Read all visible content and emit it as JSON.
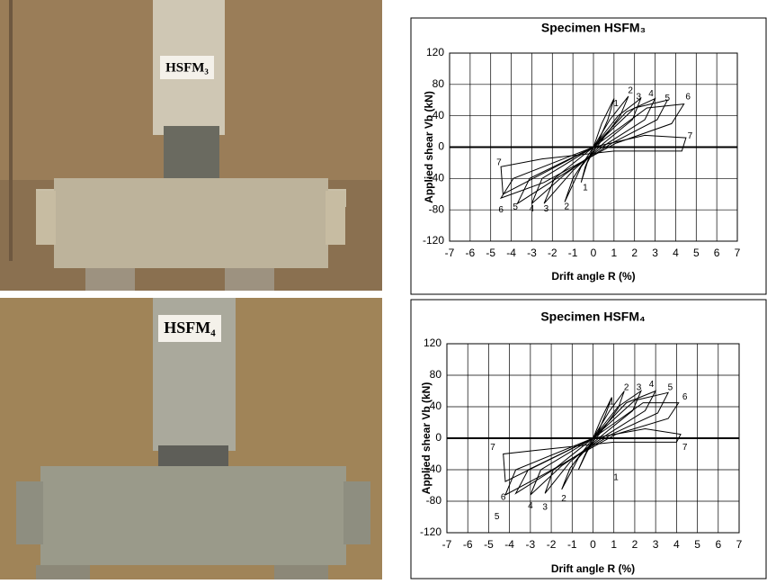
{
  "photos": [
    {
      "label": "HSFM₃"
    },
    {
      "label": "HSFM₄"
    }
  ],
  "chart_data": [
    {
      "type": "line",
      "title": "Specimen HSFM₃",
      "x_label": "Drift angle R (%)",
      "y_label": "Applied shear Vb (kN)",
      "xlim": [
        -7,
        7
      ],
      "xticks": [
        -7,
        -6,
        -5,
        -4,
        -3,
        -2,
        -1,
        0,
        1,
        2,
        3,
        4,
        5,
        6,
        7
      ],
      "ylim": [
        -120,
        120
      ],
      "yticks": [
        -120,
        -80,
        -40,
        0,
        40,
        80,
        120
      ],
      "grid": true,
      "color": "#000000",
      "series": [
        {
          "x": [
            0,
            0.4,
            1.0,
            0.7,
            0.2,
            -0.3,
            -0.6,
            -0.4,
            0
          ],
          "values": [
            0,
            30,
            62,
            35,
            5,
            -20,
            -45,
            -25,
            0
          ]
        },
        {
          "x": [
            0,
            0.8,
            1.7,
            1.3,
            0.3,
            -0.6,
            -1.4,
            -1.0,
            0
          ],
          "values": [
            0,
            35,
            65,
            40,
            5,
            -25,
            -70,
            -40,
            0
          ]
        },
        {
          "x": [
            0,
            1.2,
            2.3,
            1.9,
            0.5,
            -1.0,
            -2.4,
            -1.9,
            0
          ],
          "values": [
            0,
            40,
            62,
            35,
            5,
            -30,
            -72,
            -40,
            0
          ]
        },
        {
          "x": [
            0,
            1.6,
            3.0,
            2.5,
            0.7,
            -1.4,
            -3.0,
            -2.5,
            0
          ],
          "values": [
            0,
            45,
            62,
            35,
            5,
            -35,
            -72,
            -40,
            0
          ]
        },
        {
          "x": [
            0,
            2.0,
            3.6,
            3.1,
            0.9,
            -1.8,
            -3.7,
            -3.1,
            0
          ],
          "values": [
            0,
            50,
            60,
            35,
            5,
            -40,
            -72,
            -40,
            0
          ]
        },
        {
          "x": [
            0,
            2.6,
            4.4,
            3.8,
            1.1,
            -2.4,
            -4.5,
            -3.9,
            0
          ],
          "values": [
            0,
            50,
            55,
            30,
            5,
            -45,
            -65,
            -40,
            0
          ]
        },
        {
          "x": [
            0,
            2.5,
            4.5,
            4.3,
            1.0,
            -2.5,
            -4.5,
            -4.4,
            0
          ],
          "values": [
            0,
            15,
            12,
            -5,
            -5,
            -15,
            -25,
            -60,
            0
          ]
        }
      ],
      "annotations": [
        {
          "text": "1",
          "x": 1.1,
          "y": 55
        },
        {
          "text": "2",
          "x": 1.8,
          "y": 72
        },
        {
          "text": "3",
          "x": 2.2,
          "y": 64
        },
        {
          "text": "4",
          "x": 2.8,
          "y": 68
        },
        {
          "text": "5",
          "x": 3.6,
          "y": 62
        },
        {
          "text": "6",
          "x": 4.6,
          "y": 64
        },
        {
          "text": "7",
          "x": 4.7,
          "y": 14
        },
        {
          "text": "1",
          "x": -0.4,
          "y": -52
        },
        {
          "text": "2",
          "x": -1.3,
          "y": -76
        },
        {
          "text": "3",
          "x": -2.3,
          "y": -79
        },
        {
          "text": "4",
          "x": -3.0,
          "y": -79
        },
        {
          "text": "5",
          "x": -3.8,
          "y": -77
        },
        {
          "text": "6",
          "x": -4.5,
          "y": -80
        },
        {
          "text": "7",
          "x": -4.6,
          "y": -20
        }
      ]
    },
    {
      "type": "line",
      "title": "Specimen HSFM₄",
      "x_label": "Drift angle R (%)",
      "y_label": "Applied shear Vb  (kN)",
      "xlim": [
        -7,
        7
      ],
      "xticks": [
        -7,
        -6,
        -5,
        -4,
        -3,
        -2,
        -1,
        0,
        1,
        2,
        3,
        4,
        5,
        6,
        7
      ],
      "ylim": [
        -120,
        120
      ],
      "yticks": [
        -120,
        -80,
        -40,
        0,
        40,
        80,
        120
      ],
      "grid": true,
      "color": "#000000",
      "series": [
        {
          "x": [
            0,
            0.4,
            0.9,
            0.6,
            0.2,
            -0.3,
            -0.7,
            -0.4,
            0
          ],
          "values": [
            0,
            25,
            52,
            30,
            5,
            -18,
            -40,
            -22,
            0
          ]
        },
        {
          "x": [
            0,
            0.8,
            1.5,
            1.2,
            0.3,
            -0.7,
            -1.5,
            -1.1,
            0
          ],
          "values": [
            0,
            35,
            60,
            38,
            5,
            -25,
            -65,
            -38,
            0
          ]
        },
        {
          "x": [
            0,
            1.2,
            2.3,
            1.9,
            0.5,
            -1.1,
            -2.3,
            -1.9,
            0
          ],
          "values": [
            0,
            40,
            60,
            35,
            5,
            -30,
            -70,
            -40,
            0
          ]
        },
        {
          "x": [
            0,
            1.6,
            3.0,
            2.5,
            0.7,
            -1.5,
            -3.0,
            -2.5,
            0
          ],
          "values": [
            0,
            45,
            60,
            35,
            5,
            -35,
            -72,
            -40,
            0
          ]
        },
        {
          "x": [
            0,
            2.0,
            3.6,
            3.1,
            0.9,
            -1.9,
            -3.7,
            -3.1,
            0
          ],
          "values": [
            0,
            48,
            58,
            32,
            5,
            -40,
            -70,
            -40,
            0
          ]
        },
        {
          "x": [
            0,
            2.4,
            4.1,
            3.6,
            1.1,
            -2.3,
            -4.2,
            -3.7,
            0
          ],
          "values": [
            0,
            45,
            45,
            25,
            5,
            -45,
            -72,
            -40,
            0
          ]
        },
        {
          "x": [
            0,
            2.5,
            4.2,
            4.0,
            1.0,
            -2.6,
            -4.3,
            -4.2,
            0
          ],
          "values": [
            0,
            12,
            5,
            -5,
            -5,
            -15,
            -20,
            -55,
            0
          ]
        }
      ],
      "annotations": [
        {
          "text": "1",
          "x": 0.9,
          "y": 46
        },
        {
          "text": "2",
          "x": 1.6,
          "y": 64
        },
        {
          "text": "3",
          "x": 2.2,
          "y": 64
        },
        {
          "text": "4",
          "x": 2.8,
          "y": 68
        },
        {
          "text": "5",
          "x": 3.7,
          "y": 64
        },
        {
          "text": "6",
          "x": 4.4,
          "y": 52
        },
        {
          "text": "7",
          "x": 4.4,
          "y": -12
        },
        {
          "text": "1",
          "x": 1.1,
          "y": -50
        },
        {
          "text": "2",
          "x": -1.4,
          "y": -77
        },
        {
          "text": "3",
          "x": -2.3,
          "y": -88
        },
        {
          "text": "4",
          "x": -3.0,
          "y": -86
        },
        {
          "text": "5",
          "x": -4.6,
          "y": -100
        },
        {
          "text": "6",
          "x": -4.3,
          "y": -75
        },
        {
          "text": "7",
          "x": -4.8,
          "y": -12
        }
      ]
    }
  ]
}
